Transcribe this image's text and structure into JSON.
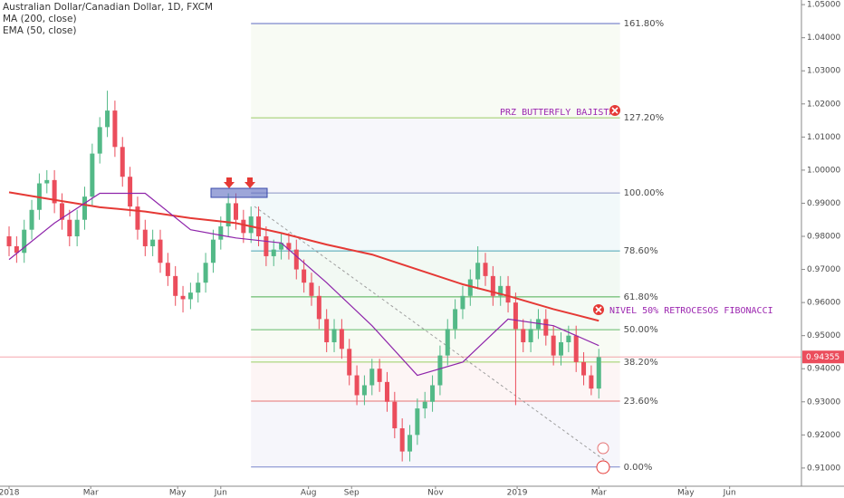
{
  "chart_data": {
    "type": "candlestick",
    "title": "Australian Dollar/Canadian Dollar, 1D, FXCM",
    "indicators": [
      "MA (200, close)",
      "EMA (50, close)"
    ],
    "up_color": "#53b987",
    "down_color": "#eb4d5c",
    "xlim": [
      -1.2,
      104.8
    ],
    "xticks": [
      {
        "value": 0,
        "label": "2018"
      },
      {
        "value": 10.8,
        "label": "Mar"
      },
      {
        "value": 22.3,
        "label": "May"
      },
      {
        "value": 28,
        "label": "Jun"
      },
      {
        "value": 39.6,
        "label": "Aug"
      },
      {
        "value": 45.3,
        "label": "Sep"
      },
      {
        "value": 56.4,
        "label": "Nov"
      },
      {
        "value": 67.2,
        "label": "2019"
      },
      {
        "value": 78,
        "label": "Mar"
      },
      {
        "value": 89.5,
        "label": "May"
      },
      {
        "value": 95.3,
        "label": "Jun"
      }
    ],
    "ylim": [
      0.9045,
      1.0514
    ],
    "yticks": [
      {
        "value": 0.91,
        "label": "0.91000"
      },
      {
        "value": 0.92,
        "label": "0.92000"
      },
      {
        "value": 0.93,
        "label": "0.93000"
      },
      {
        "value": 0.94,
        "label": "0.94000"
      },
      {
        "value": 0.95,
        "label": "0.95000"
      },
      {
        "value": 0.96,
        "label": "0.96000"
      },
      {
        "value": 0.97,
        "label": "0.97000"
      },
      {
        "value": 0.98,
        "label": "0.98000"
      },
      {
        "value": 0.99,
        "label": "0.99000"
      },
      {
        "value": 1.0,
        "label": "1.00000"
      },
      {
        "value": 1.01,
        "label": "1.01000"
      },
      {
        "value": 1.02,
        "label": "1.02000"
      },
      {
        "value": 1.03,
        "label": "1.03000"
      },
      {
        "value": 1.04,
        "label": "1.04000"
      },
      {
        "value": 1.05,
        "label": "1.05000"
      }
    ],
    "grid": false,
    "open": [
      0.98,
      0.977,
      0.975,
      0.982,
      0.988,
      0.996,
      0.997,
      0.99,
      0.985,
      0.98,
      0.985,
      0.992,
      1.005,
      1.013,
      1.018,
      1.007,
      0.998,
      0.989,
      0.982,
      0.977,
      0.979,
      0.972,
      0.968,
      0.962,
      0.961,
      0.963,
      0.966,
      0.972,
      0.979,
      0.983,
      0.99,
      0.985,
      0.981,
      0.986,
      0.98,
      0.974,
      0.976,
      0.978,
      0.976,
      0.97,
      0.966,
      0.962,
      0.955,
      0.948,
      0.952,
      0.946,
      0.938,
      0.932,
      0.935,
      0.94,
      0.936,
      0.93,
      0.922,
      0.915,
      0.92,
      0.928,
      0.93,
      0.935,
      0.944,
      0.952,
      0.958,
      0.962,
      0.967,
      0.972,
      0.968,
      0.962,
      0.965,
      0.96,
      0.952,
      0.948,
      0.952,
      0.955,
      0.95,
      0.944,
      0.948,
      0.95,
      0.942,
      0.938,
      0.934
    ],
    "high": [
      0.983,
      0.98,
      0.985,
      0.991,
      0.999,
      1.0,
      1.0,
      0.993,
      0.988,
      0.988,
      0.995,
      1.008,
      1.016,
      1.024,
      1.021,
      1.01,
      1.001,
      0.992,
      0.985,
      0.982,
      0.982,
      0.975,
      0.971,
      0.965,
      0.966,
      0.969,
      0.975,
      0.982,
      0.986,
      0.993,
      0.993,
      0.988,
      0.989,
      0.989,
      0.983,
      0.979,
      0.981,
      0.981,
      0.979,
      0.973,
      0.969,
      0.965,
      0.958,
      0.955,
      0.955,
      0.949,
      0.941,
      0.938,
      0.943,
      0.943,
      0.939,
      0.933,
      0.925,
      0.923,
      0.931,
      0.933,
      0.938,
      0.947,
      0.955,
      0.961,
      0.965,
      0.97,
      0.977,
      0.975,
      0.971,
      0.968,
      0.968,
      0.963,
      0.955,
      0.955,
      0.958,
      0.958,
      0.953,
      0.951,
      0.953,
      0.953,
      0.945,
      0.941,
      0.946
    ],
    "low": [
      0.974,
      0.972,
      0.972,
      0.979,
      0.985,
      0.993,
      0.987,
      0.982,
      0.977,
      0.977,
      0.982,
      0.989,
      1.002,
      1.01,
      1.004,
      0.995,
      0.986,
      0.979,
      0.974,
      0.974,
      0.969,
      0.965,
      0.959,
      0.957,
      0.958,
      0.96,
      0.963,
      0.969,
      0.976,
      0.98,
      0.982,
      0.978,
      0.978,
      0.977,
      0.971,
      0.971,
      0.973,
      0.973,
      0.967,
      0.963,
      0.959,
      0.952,
      0.945,
      0.945,
      0.943,
      0.935,
      0.929,
      0.929,
      0.932,
      0.933,
      0.927,
      0.919,
      0.912,
      0.912,
      0.917,
      0.925,
      0.927,
      0.932,
      0.941,
      0.949,
      0.955,
      0.959,
      0.964,
      0.965,
      0.959,
      0.959,
      0.957,
      0.929,
      0.945,
      0.945,
      0.949,
      0.947,
      0.941,
      0.941,
      0.945,
      0.939,
      0.935,
      0.932,
      0.931
    ],
    "close": [
      0.977,
      0.975,
      0.982,
      0.988,
      0.996,
      0.997,
      0.99,
      0.985,
      0.98,
      0.985,
      0.992,
      1.005,
      1.013,
      1.018,
      1.007,
      0.998,
      0.989,
      0.982,
      0.977,
      0.979,
      0.972,
      0.968,
      0.962,
      0.961,
      0.963,
      0.966,
      0.972,
      0.979,
      0.983,
      0.99,
      0.985,
      0.981,
      0.986,
      0.98,
      0.974,
      0.976,
      0.978,
      0.976,
      0.97,
      0.966,
      0.962,
      0.955,
      0.948,
      0.952,
      0.946,
      0.938,
      0.932,
      0.935,
      0.94,
      0.936,
      0.93,
      0.922,
      0.915,
      0.92,
      0.928,
      0.93,
      0.935,
      0.944,
      0.952,
      0.958,
      0.962,
      0.967,
      0.972,
      0.968,
      0.962,
      0.965,
      0.96,
      0.952,
      0.948,
      0.952,
      0.955,
      0.95,
      0.944,
      0.948,
      0.95,
      0.942,
      0.938,
      0.934,
      0.9435
    ],
    "lines": [
      {
        "name": "MA (200, close)",
        "color": "#e53935",
        "width": 2,
        "x": [
          0,
          6,
          12,
          18,
          24,
          30,
          36,
          42,
          48,
          54,
          60,
          66,
          72,
          78
        ],
        "values": [
          0.9933,
          0.991,
          0.9888,
          0.9875,
          0.9855,
          0.984,
          0.981,
          0.9775,
          0.9745,
          0.97,
          0.9655,
          0.962,
          0.958,
          0.9545
        ]
      },
      {
        "name": "EMA (50, close)",
        "color": "#8e24aa",
        "width": 1.2,
        "x": [
          0,
          6,
          12,
          18,
          24,
          30,
          36,
          42,
          48,
          54,
          60,
          66,
          72,
          78
        ],
        "values": [
          0.973,
          0.984,
          0.993,
          0.993,
          0.982,
          0.9795,
          0.978,
          0.966,
          0.953,
          0.938,
          0.942,
          0.955,
          0.953,
          0.947
        ]
      }
    ],
    "fib": {
      "x_start": 32,
      "x_end": 80.8,
      "levels": [
        {
          "value": 1.0443,
          "label": "161.80%",
          "color": "#5c6bc0"
        },
        {
          "value": 1.0158,
          "label": "127.20%",
          "color": "#9ccc65"
        },
        {
          "value": 0.9931,
          "label": "100.00%",
          "color": "#8a93c4"
        },
        {
          "value": 0.9756,
          "label": "78.60%",
          "color": "#4aa3b3"
        },
        {
          "value": 0.9617,
          "label": "61.80%",
          "color": "#4caf50"
        },
        {
          "value": 0.9518,
          "label": "50.00%",
          "color": "#66bb6a"
        },
        {
          "value": 0.942,
          "label": "38.20%",
          "color": "#9ccc65"
        },
        {
          "value": 0.9302,
          "label": "23.60%",
          "color": "#e57373"
        },
        {
          "value": 0.9103,
          "label": "0.00%",
          "color": "#7986cb"
        }
      ]
    },
    "last_price": {
      "value": 0.94355,
      "label": "0.94355",
      "color": "#eb4d5c"
    },
    "annotations": [
      "PRZ BUTTERFLY BAJISTA",
      "NIVEL 50% RETROCESOS FIBONACCI"
    ]
  }
}
